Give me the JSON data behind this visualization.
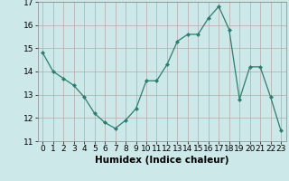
{
  "x": [
    0,
    1,
    2,
    3,
    4,
    5,
    6,
    7,
    8,
    9,
    10,
    11,
    12,
    13,
    14,
    15,
    16,
    17,
    18,
    19,
    20,
    21,
    22,
    23
  ],
  "y": [
    14.8,
    14.0,
    13.7,
    13.4,
    12.9,
    12.2,
    11.8,
    11.55,
    11.9,
    12.4,
    13.6,
    13.6,
    14.3,
    15.3,
    15.6,
    15.6,
    16.3,
    16.8,
    15.8,
    12.8,
    14.2,
    14.2,
    12.9,
    11.45
  ],
  "line_color": "#2d7d6e",
  "marker": "D",
  "marker_size": 2.0,
  "bg_color": "#cce8e8",
  "grid_major_color": "#b8a8a8",
  "grid_minor_color": "#ddd0d0",
  "xlabel": "Humidex (Indice chaleur)",
  "ylim": [
    11,
    17
  ],
  "xlim_min": -0.5,
  "xlim_max": 23.5,
  "yticks": [
    11,
    12,
    13,
    14,
    15,
    16,
    17
  ],
  "xticks": [
    0,
    1,
    2,
    3,
    4,
    5,
    6,
    7,
    8,
    9,
    10,
    11,
    12,
    13,
    14,
    15,
    16,
    17,
    18,
    19,
    20,
    21,
    22,
    23
  ],
  "tick_fontsize": 6.5,
  "xlabel_fontsize": 7.5
}
